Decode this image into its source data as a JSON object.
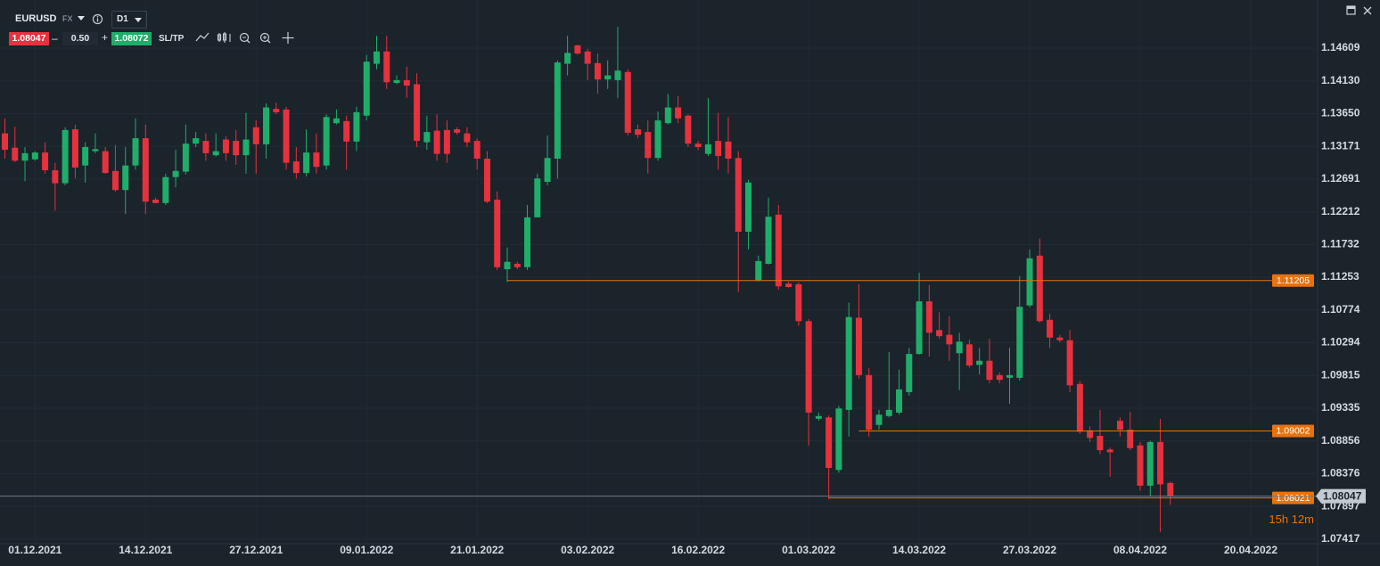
{
  "toolbar": {
    "symbol": "EURUSD",
    "market": "FX",
    "timeframe": "D1",
    "sell": "1.08047",
    "spread": "0.50",
    "buy": "1.08072",
    "sltp": "SL/TP"
  },
  "chart_data": {
    "type": "candlestick",
    "categories": [
      null,
      null,
      null,
      "01.12.2021",
      null,
      null,
      null,
      null,
      null,
      null,
      null,
      null,
      null,
      null,
      "14.12.2021",
      null,
      null,
      null,
      null,
      null,
      null,
      null,
      null,
      null,
      null,
      "27.12.2021",
      null,
      null,
      null,
      null,
      null,
      null,
      null,
      null,
      null,
      null,
      "09.01.2022",
      null,
      null,
      null,
      null,
      null,
      null,
      null,
      null,
      null,
      null,
      "21.01.2022",
      null,
      null,
      null,
      null,
      null,
      null,
      null,
      null,
      null,
      null,
      "03.02.2022",
      null,
      null,
      null,
      null,
      null,
      null,
      null,
      null,
      null,
      null,
      "16.02.2022",
      null,
      null,
      null,
      null,
      null,
      null,
      null,
      null,
      null,
      null,
      "01.03.2022",
      null,
      null,
      null,
      null,
      null,
      null,
      null,
      null,
      null,
      null,
      "14.03.2022",
      null,
      null,
      null,
      null,
      null,
      null,
      null,
      null,
      null,
      null,
      "27.03.2022",
      null,
      null,
      null,
      null,
      null,
      null,
      null,
      null,
      null,
      null,
      "08.04.2022",
      null,
      null,
      null,
      null,
      null,
      null,
      null,
      null,
      null,
      null,
      "20.04.2022"
    ],
    "open": [
      1.1336,
      1.1315,
      1.1296,
      1.1298,
      1.1308,
      1.1282,
      1.1263,
      1.1342,
      1.1289,
      1.131,
      1.131,
      1.1281,
      1.1253,
      1.1289,
      1.1329,
      1.1239,
      1.1234,
      1.1272,
      1.128,
      1.1321,
      1.1325,
      1.1304,
      1.1327,
      1.1325,
      1.1304,
      1.1345,
      1.132,
      1.1372,
      1.1371,
      1.1295,
      1.1278,
      1.1308,
      1.1289,
      1.1351,
      1.1354,
      1.1324,
      1.1362,
      1.1438,
      1.1456,
      1.141,
      1.1414,
      1.1408,
      1.1323,
      1.134,
      1.1341,
      1.1342,
      1.1336,
      1.1325,
      1.1299,
      1.1239,
      1.1137,
      1.1145,
      1.114,
      1.1213,
      1.1265,
      1.1299,
      1.1438,
      1.1465,
      1.1456,
      1.1439,
      1.1415,
      1.1414,
      1.1426,
      1.1342,
      1.1338,
      1.13,
      1.1351,
      1.1374,
      1.1362,
      1.1321,
      1.1306,
      1.1325,
      1.1324,
      1.13,
      1.1192,
      1.1121,
      1.1145,
      1.1217,
      1.1116,
      1.1115,
      1.1061,
      1.0918,
      1.092,
      1.0843,
      1.0931,
      1.1066,
      1.0982,
      1.0909,
      1.0922,
      1.0927,
      1.0957,
      1.1013,
      1.109,
      1.1048,
      1.1041,
      1.1014,
      1.1027,
      1.0997,
      1.1003,
      1.0982,
      1.0978,
      1.0978,
      1.1084,
      1.1157,
      1.1063,
      1.1037,
      1.1033,
      1.0969,
      1.0901,
      1.0893,
      1.0873,
      1.0915,
      1.0902,
      1.0879,
      1.082,
      1.0884,
      1.0824,
      null,
      null,
      null,
      null,
      null,
      null,
      null,
      null
    ],
    "high": [
      1.1358,
      1.1346,
      1.1316,
      1.131,
      1.1323,
      1.1293,
      1.1345,
      1.1349,
      1.1323,
      1.1336,
      1.1316,
      1.1319,
      1.1316,
      1.1358,
      1.1349,
      1.1242,
      1.1277,
      1.1312,
      1.1349,
      1.1338,
      1.1336,
      1.1336,
      1.1332,
      1.1341,
      1.1366,
      1.1355,
      1.138,
      1.1381,
      1.1375,
      1.1316,
      1.1342,
      1.1336,
      1.1364,
      1.1371,
      1.1362,
      1.1375,
      1.1451,
      1.1479,
      1.1479,
      1.1421,
      1.1434,
      1.1424,
      1.1362,
      1.1364,
      1.1355,
      1.1345,
      1.1345,
      1.1329,
      1.131,
      1.1251,
      1.1169,
      1.1148,
      1.1231,
      1.1277,
      1.1333,
      1.1443,
      1.1479,
      1.1466,
      1.146,
      1.1453,
      1.1443,
      1.1492,
      1.143,
      1.1349,
      1.1355,
      1.1368,
      1.1394,
      1.1391,
      1.1364,
      1.1325,
      1.1388,
      1.1366,
      1.136,
      1.131,
      1.1268,
      1.1157,
      1.1242,
      1.1231,
      1.1119,
      1.1118,
      1.1064,
      1.0927,
      1.0923,
      1.0937,
      1.1088,
      1.1115,
      1.0992,
      1.0931,
      1.1016,
      1.099,
      1.1022,
      1.1132,
      1.1114,
      1.1074,
      1.1068,
      1.1044,
      1.1034,
      1.1022,
      1.1035,
      1.0986,
      1.1022,
      1.1127,
      1.1166,
      1.1182,
      1.1072,
      1.1041,
      1.1048,
      1.0973,
      1.0907,
      1.0931,
      1.0876,
      1.092,
      1.0928,
      1.0884,
      1.0886,
      1.0918,
      1.0826,
      null,
      null,
      null,
      null,
      null,
      null,
      null,
      null
    ],
    "low": [
      1.1299,
      1.1294,
      1.1266,
      1.1296,
      1.1277,
      1.1223,
      1.126,
      1.127,
      1.1264,
      1.1307,
      1.1277,
      1.1251,
      1.1218,
      1.1283,
      1.1218,
      1.1234,
      1.1231,
      1.1257,
      1.1276,
      1.1316,
      1.1296,
      1.1302,
      1.1296,
      1.129,
      1.1277,
      1.1277,
      1.1299,
      1.1364,
      1.1283,
      1.127,
      1.1273,
      1.1277,
      1.1283,
      1.1349,
      1.1283,
      1.131,
      1.1355,
      1.143,
      1.1401,
      1.1408,
      1.1388,
      1.1316,
      1.1312,
      1.1296,
      1.1293,
      1.1334,
      1.1316,
      1.1283,
      1.1234,
      1.1136,
      1.1118,
      1.1137,
      1.1136,
      1.1218,
      1.126,
      1.127,
      1.1421,
      1.1451,
      1.1414,
      1.1394,
      1.1401,
      1.1388,
      1.1333,
      1.1329,
      1.1277,
      1.1296,
      1.1349,
      1.1351,
      1.1316,
      1.1312,
      1.1303,
      1.1283,
      1.1277,
      1.1104,
      1.1166,
      1.1119,
      1.1144,
      1.1107,
      1.111,
      1.1054,
      1.0879,
      1.0915,
      1.08,
      1.0839,
      1.0892,
      1.0977,
      1.0892,
      1.0902,
      1.092,
      1.0924,
      1.0952,
      1.1012,
      1.1009,
      1.1035,
      1.1003,
      1.096,
      1.0993,
      1.0983,
      1.097,
      1.097,
      1.094,
      1.0974,
      1.1081,
      1.1059,
      1.1022,
      1.103,
      1.0957,
      1.0896,
      1.0884,
      1.0866,
      1.0833,
      1.0892,
      1.0872,
      1.0813,
      1.0804,
      1.0752,
      1.0792,
      null,
      null,
      null,
      null,
      null,
      null,
      null,
      null
    ],
    "close": [
      1.1312,
      1.1296,
      1.1307,
      1.1308,
      1.1282,
      1.1263,
      1.1341,
      1.1286,
      1.1316,
      1.1313,
      1.1278,
      1.1253,
      1.1289,
      1.1329,
      1.1236,
      1.1234,
      1.1272,
      1.1281,
      1.1321,
      1.1329,
      1.1307,
      1.131,
      1.1307,
      1.1304,
      1.1327,
      1.132,
      1.1374,
      1.1367,
      1.1293,
      1.1278,
      1.1308,
      1.1287,
      1.136,
      1.1358,
      1.1324,
      1.1367,
      1.1441,
      1.1456,
      1.1411,
      1.1414,
      1.1406,
      1.1325,
      1.1338,
      1.1306,
      1.1306,
      1.1337,
      1.1323,
      1.1299,
      1.1236,
      1.114,
      1.1148,
      1.114,
      1.1213,
      1.127,
      1.13,
      1.144,
      1.1454,
      1.1453,
      1.1438,
      1.1415,
      1.1421,
      1.1428,
      1.1337,
      1.1334,
      1.13,
      1.1355,
      1.1374,
      1.1358,
      1.1321,
      1.1316,
      1.132,
      1.1303,
      1.1299,
      1.1192,
      1.1264,
      1.1149,
      1.1214,
      1.1112,
      1.1111,
      1.1061,
      1.0927,
      1.0922,
      1.0846,
      1.0933,
      1.1067,
      1.0982,
      1.0902,
      1.0924,
      1.0931,
      1.0961,
      1.1013,
      1.109,
      1.1044,
      1.1039,
      1.1027,
      1.1031,
      1.0996,
      1.1003,
      1.0975,
      1.0975,
      1.0982,
      1.1082,
      1.1153,
      1.1061,
      1.1037,
      1.1033,
      1.0967,
      1.0899,
      1.089,
      1.0872,
      1.0869,
      1.0902,
      1.0875,
      1.082,
      1.0884,
      1.0822,
      1.0805,
      null,
      null,
      null,
      null,
      null,
      null,
      null,
      null
    ],
    "up_color": "#1fae6a",
    "down_color": "#e5323e",
    "ylim": [
      1.0735,
      1.15314
    ],
    "yticks": [
      1.14609,
      {
        "value": 1.1413,
        "label": "1.14130"
      },
      {
        "value": 1.1365,
        "label": "1.13650"
      },
      1.13171,
      1.12691,
      1.12212,
      1.11732,
      1.11253,
      1.10774,
      1.10294,
      1.09815,
      1.09335,
      1.08856,
      1.08376,
      1.07897,
      1.07417
    ],
    "grid": true,
    "levels": [
      1.11205,
      1.09002,
      1.08021
    ],
    "level_color": "#e8720c",
    "current_price": 1.08047,
    "countdown": "15h 12m"
  }
}
